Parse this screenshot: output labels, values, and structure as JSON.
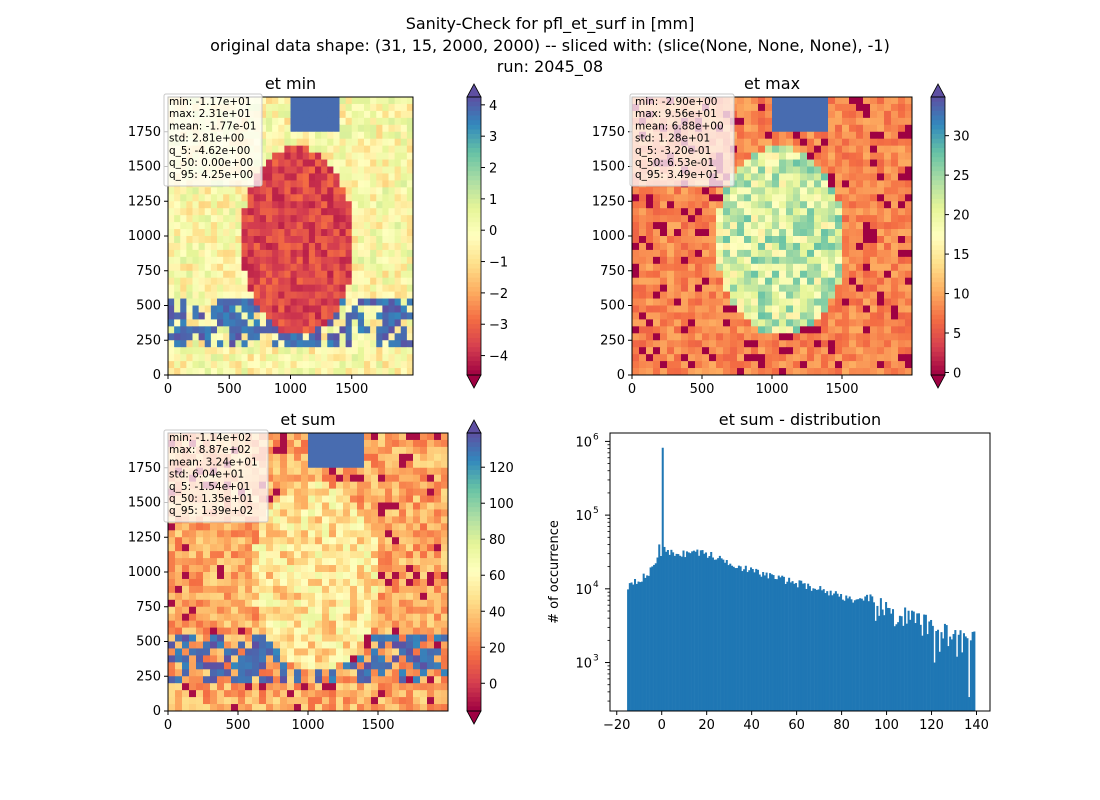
{
  "figure": {
    "title_lines": [
      "Sanity-Check for pfl_et_surf in [mm]",
      "original data shape: (31, 15, 2000, 2000) -- sliced with: (slice(None, None, None), -1)",
      "run: 2045_08"
    ]
  },
  "colors": {
    "histogram_fill": "#1f77b4",
    "spectral_colormap": [
      "#9e0142",
      "#d53e4f",
      "#f46d43",
      "#fdae61",
      "#fee08b",
      "#ffffbf",
      "#e6f598",
      "#abdda4",
      "#66c2a5",
      "#3288bd",
      "#5e4fa2"
    ]
  },
  "chart_data": [
    {
      "type": "heatmap",
      "title": "et min",
      "xticks": [
        0,
        500,
        1000,
        1500
      ],
      "yticks": [
        0,
        250,
        500,
        750,
        1000,
        1250,
        1500,
        1750
      ],
      "xlim": [
        0,
        2000
      ],
      "ylim": [
        0,
        2000
      ],
      "colormap": "Spectral",
      "color_range": [
        -4.62,
        4.25
      ],
      "colorbar_ticks": [
        "4",
        "3",
        "2",
        "1",
        "0",
        "−1",
        "−2",
        "−3",
        "−4"
      ],
      "colorbar_tick_values": [
        4,
        3,
        2,
        1,
        0,
        -1,
        -2,
        -3,
        -4
      ],
      "stats": [
        "min: -1.17e+01",
        "max: 2.31e+01",
        "mean: -1.77e-01",
        "std: 2.81e+00",
        "q_5: -4.62e+00",
        "q_50: 0.00e+00",
        "q_95: 4.25e+00"
      ]
    },
    {
      "type": "heatmap",
      "title": "et max",
      "xticks": [
        0,
        500,
        1000,
        1500
      ],
      "yticks": [
        0,
        250,
        500,
        750,
        1000,
        1250,
        1500,
        1750
      ],
      "xlim": [
        0,
        2000
      ],
      "ylim": [
        0,
        2000
      ],
      "colormap": "Spectral",
      "color_range": [
        -0.32,
        34.9
      ],
      "colorbar_ticks": [
        "30",
        "25",
        "20",
        "15",
        "10",
        "5",
        "0"
      ],
      "colorbar_tick_values": [
        30,
        25,
        20,
        15,
        10,
        5,
        0
      ],
      "stats": [
        "min: -2.90e+00",
        "max: 9.56e+01",
        "mean: 6.88e+00",
        "std: 1.28e+01",
        "q_5: -3.20e-01",
        "q_50: 6.53e-01",
        "q_95: 3.49e+01"
      ]
    },
    {
      "type": "heatmap",
      "title": "et sum",
      "xticks": [
        0,
        500,
        1000,
        1500
      ],
      "yticks": [
        0,
        250,
        500,
        750,
        1000,
        1250,
        1500,
        1750
      ],
      "xlim": [
        0,
        2000
      ],
      "ylim": [
        0,
        2000
      ],
      "colormap": "Spectral",
      "color_range": [
        -15.4,
        139
      ],
      "colorbar_ticks": [
        "120",
        "100",
        "80",
        "60",
        "40",
        "20",
        "0"
      ],
      "colorbar_tick_values": [
        120,
        100,
        80,
        60,
        40,
        20,
        0
      ],
      "stats": [
        "min: -1.14e+02",
        "max: 8.87e+02",
        "mean: 3.24e+01",
        "std: 6.04e+01",
        "q_5: -1.54e+01",
        "q_50: 1.35e+01",
        "q_95: 1.39e+02"
      ]
    },
    {
      "type": "bar",
      "title": "et sum - distribution",
      "ylabel": "# of occurrence",
      "yscale": "log",
      "xlim": [
        -23,
        146
      ],
      "ylim": [
        220,
        1300000
      ],
      "xticks": [
        -20,
        0,
        20,
        40,
        60,
        80,
        100,
        120,
        140
      ],
      "yticks_exponents": [
        3,
        4,
        5,
        6
      ],
      "ytick_base": "10",
      "bins": {
        "start": -15.4,
        "end": 139,
        "width": 0.77,
        "anchors": [
          [
            -15.4,
            10000
          ],
          [
            -14,
            12500
          ],
          [
            -10,
            13500
          ],
          [
            -6,
            15500
          ],
          [
            -4,
            20000
          ],
          [
            -2,
            27000
          ],
          [
            -1,
            33000
          ],
          [
            0,
            30000
          ],
          [
            5,
            31000
          ],
          [
            10,
            30000
          ],
          [
            15,
            32000
          ],
          [
            20,
            30000
          ],
          [
            25,
            26000
          ],
          [
            30,
            23000
          ],
          [
            35,
            20000
          ],
          [
            40,
            17500
          ],
          [
            50,
            14500
          ],
          [
            60,
            12000
          ],
          [
            70,
            10000
          ],
          [
            80,
            8000
          ],
          [
            90,
            6500
          ],
          [
            100,
            5000
          ],
          [
            110,
            4000
          ],
          [
            120,
            3000
          ],
          [
            130,
            2400
          ],
          [
            139,
            2000
          ]
        ],
        "spikes": [
          [
            0,
            820000
          ],
          [
            -1.5,
            40000
          ],
          [
            0.8,
            37000
          ],
          [
            121,
            1000
          ],
          [
            123,
            1400
          ],
          [
            131,
            1200
          ],
          [
            134,
            2500
          ],
          [
            136,
            340
          ],
          [
            137,
            2000
          ],
          [
            138,
            2600
          ]
        ]
      }
    }
  ]
}
